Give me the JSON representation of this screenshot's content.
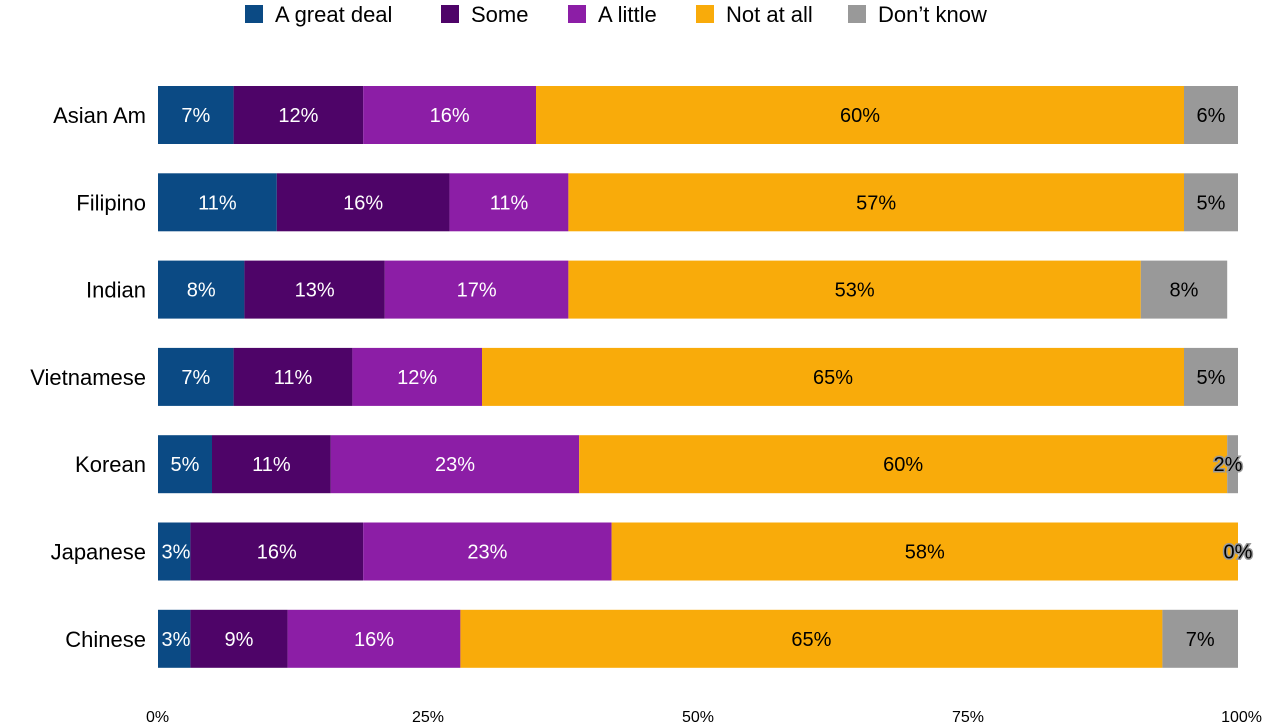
{
  "chart_data": {
    "type": "bar",
    "orientation": "horizontal",
    "stacked": true,
    "categories": [
      "Asian Am",
      "Filipino",
      "Indian",
      "Vietnamese",
      "Korean",
      "Japanese",
      "Chinese"
    ],
    "series": [
      {
        "name": "A great deal",
        "color": "#0b4a84",
        "label_color": "#ffffff",
        "values": [
          7,
          11,
          8,
          7,
          5,
          3,
          3
        ],
        "labels": [
          "7%",
          "11%",
          "8%",
          "7%",
          "5%",
          "3%",
          "3%"
        ]
      },
      {
        "name": "Some",
        "color": "#4e0468",
        "label_color": "#ffffff",
        "values": [
          12,
          16,
          13,
          11,
          11,
          16,
          9
        ],
        "labels": [
          "12%",
          "16%",
          "13%",
          "11%",
          "11%",
          "16%",
          "9%"
        ]
      },
      {
        "name": "A little",
        "color": "#8c1ea6",
        "label_color": "#ffffff",
        "values": [
          16,
          11,
          17,
          12,
          23,
          23,
          16
        ],
        "labels": [
          "16%",
          "11%",
          "17%",
          "12%",
          "23%",
          "23%",
          "16%"
        ]
      },
      {
        "name": "Not at all",
        "color": "#f9ab0a",
        "label_color": "#000000",
        "values": [
          60,
          57,
          53,
          65,
          60,
          58,
          65
        ],
        "labels": [
          "60%",
          "57%",
          "53%",
          "65%",
          "60%",
          "58%",
          "65%"
        ]
      },
      {
        "name": "Don’t know",
        "color": "#999999",
        "label_color": "#000000",
        "values": [
          6,
          5,
          8,
          5,
          2,
          0,
          7
        ],
        "labels": [
          "6%",
          "5%",
          "8%",
          "5%",
          "2%",
          "0%",
          "7%"
        ]
      }
    ],
    "x_ticks": [
      "0%",
      "25%",
      "50%",
      "75%",
      "100%"
    ],
    "xlim": [
      0,
      100
    ],
    "grid": false,
    "legend_position": "top"
  }
}
